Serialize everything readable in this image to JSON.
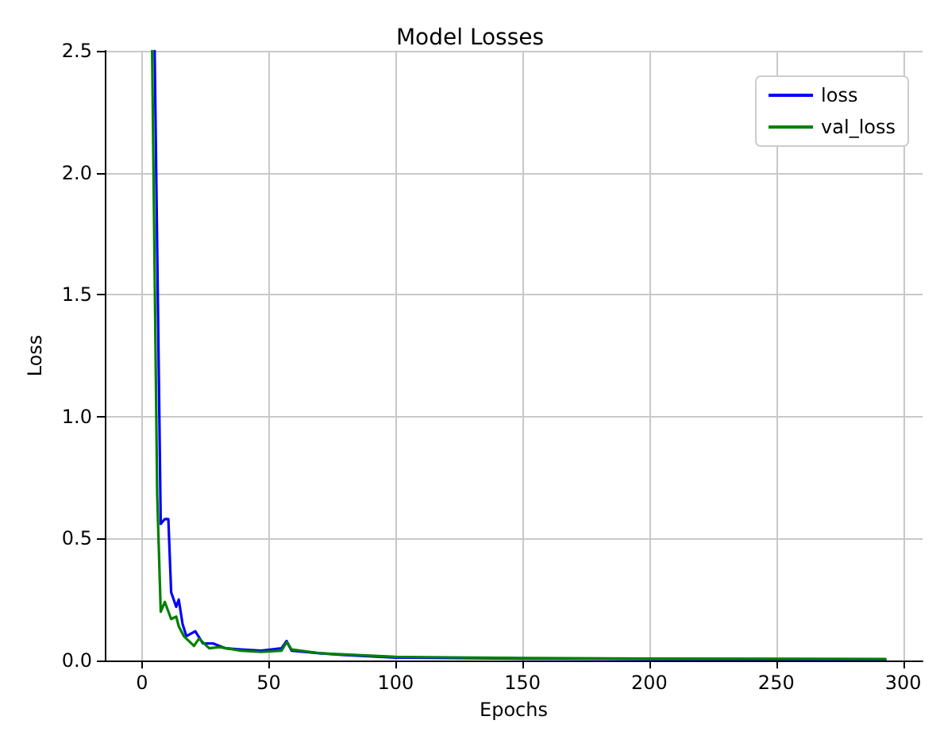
{
  "chart_data": {
    "type": "line",
    "title": "Model Losses",
    "xlabel": "Epochs",
    "ylabel": "Loss",
    "xlim": [
      -14.65,
      307.65
    ],
    "ylim": [
      0,
      2.5
    ],
    "xticks": [
      0,
      50,
      100,
      150,
      200,
      250,
      300
    ],
    "yticks": [
      {
        "value": 0,
        "label": "0.0"
      },
      {
        "value": 0.5,
        "label": "0.5"
      },
      {
        "value": 1,
        "label": "1.0"
      },
      {
        "value": 1.5,
        "label": "1.5"
      },
      {
        "value": 2,
        "label": "2.0"
      },
      {
        "value": 2.5,
        "label": "2.5"
      }
    ],
    "grid": true,
    "legend": "top right",
    "line_style": "solid",
    "marker": "none",
    "series": [
      {
        "name": "loss",
        "color": "#0000ff",
        "x": [
          5,
          7.4,
          9,
          10.4,
          11.5,
          13.5,
          14.5,
          16,
          17.5,
          21,
          24,
          28,
          33,
          39,
          47,
          55,
          57,
          59,
          70,
          80,
          100,
          150,
          200,
          250,
          293
        ],
        "values": [
          2.5,
          0.56,
          0.58,
          0.58,
          0.28,
          0.22,
          0.25,
          0.15,
          0.1,
          0.12,
          0.07,
          0.07,
          0.05,
          0.045,
          0.04,
          0.05,
          0.08,
          0.04,
          0.03,
          0.022,
          0.012,
          0.008,
          0.006,
          0.005,
          0.004
        ]
      },
      {
        "name": "val_loss",
        "color": "#008000",
        "x": [
          4,
          6,
          7.4,
          9,
          11.5,
          13.5,
          14.5,
          16.5,
          20.5,
          22.5,
          26.5,
          30.5,
          39,
          47,
          55,
          57,
          59,
          70,
          80,
          100,
          150,
          200,
          250,
          293
        ],
        "values": [
          2.5,
          0.68,
          0.2,
          0.24,
          0.17,
          0.18,
          0.14,
          0.1,
          0.06,
          0.09,
          0.05,
          0.055,
          0.04,
          0.035,
          0.04,
          0.075,
          0.045,
          0.03,
          0.025,
          0.015,
          0.01,
          0.008,
          0.007,
          0.006
        ]
      }
    ]
  }
}
